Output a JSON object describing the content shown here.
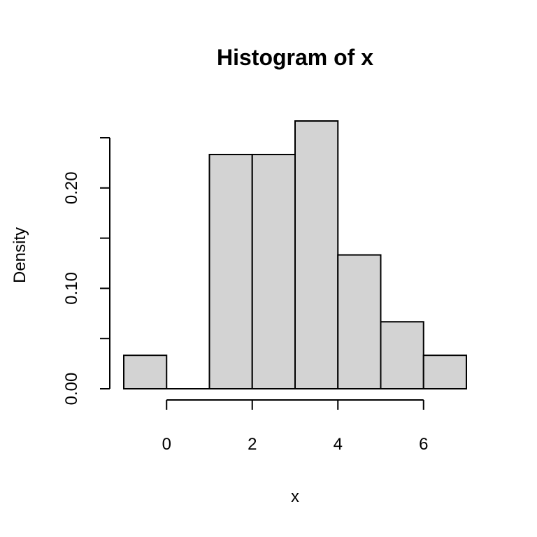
{
  "chart_data": {
    "type": "bar",
    "title": "Histogram of x",
    "xlabel": "x",
    "ylabel": "Density",
    "bins": [
      {
        "start": -1,
        "end": 0,
        "density": 0.0333
      },
      {
        "start": 0,
        "end": 1,
        "density": 0.0
      },
      {
        "start": 1,
        "end": 2,
        "density": 0.2333
      },
      {
        "start": 2,
        "end": 3,
        "density": 0.2333
      },
      {
        "start": 3,
        "end": 4,
        "density": 0.2667
      },
      {
        "start": 4,
        "end": 5,
        "density": 0.1333
      },
      {
        "start": 5,
        "end": 6,
        "density": 0.0667
      },
      {
        "start": 6,
        "end": 7,
        "density": 0.0333
      }
    ],
    "xlim": [
      -1,
      7
    ],
    "ylim": [
      0,
      0.25
    ],
    "x_ticks": [
      0,
      2,
      4,
      6
    ],
    "x_tick_labels": [
      "0",
      "2",
      "4",
      "6"
    ],
    "y_ticks": [
      0,
      0.05,
      0.1,
      0.15,
      0.2,
      0.25
    ],
    "y_tick_labels": [
      "0.00",
      "",
      "0.10",
      "",
      "0.20",
      ""
    ],
    "bar_color": "#d3d3d3",
    "line_color": "#000000",
    "grid": false
  }
}
